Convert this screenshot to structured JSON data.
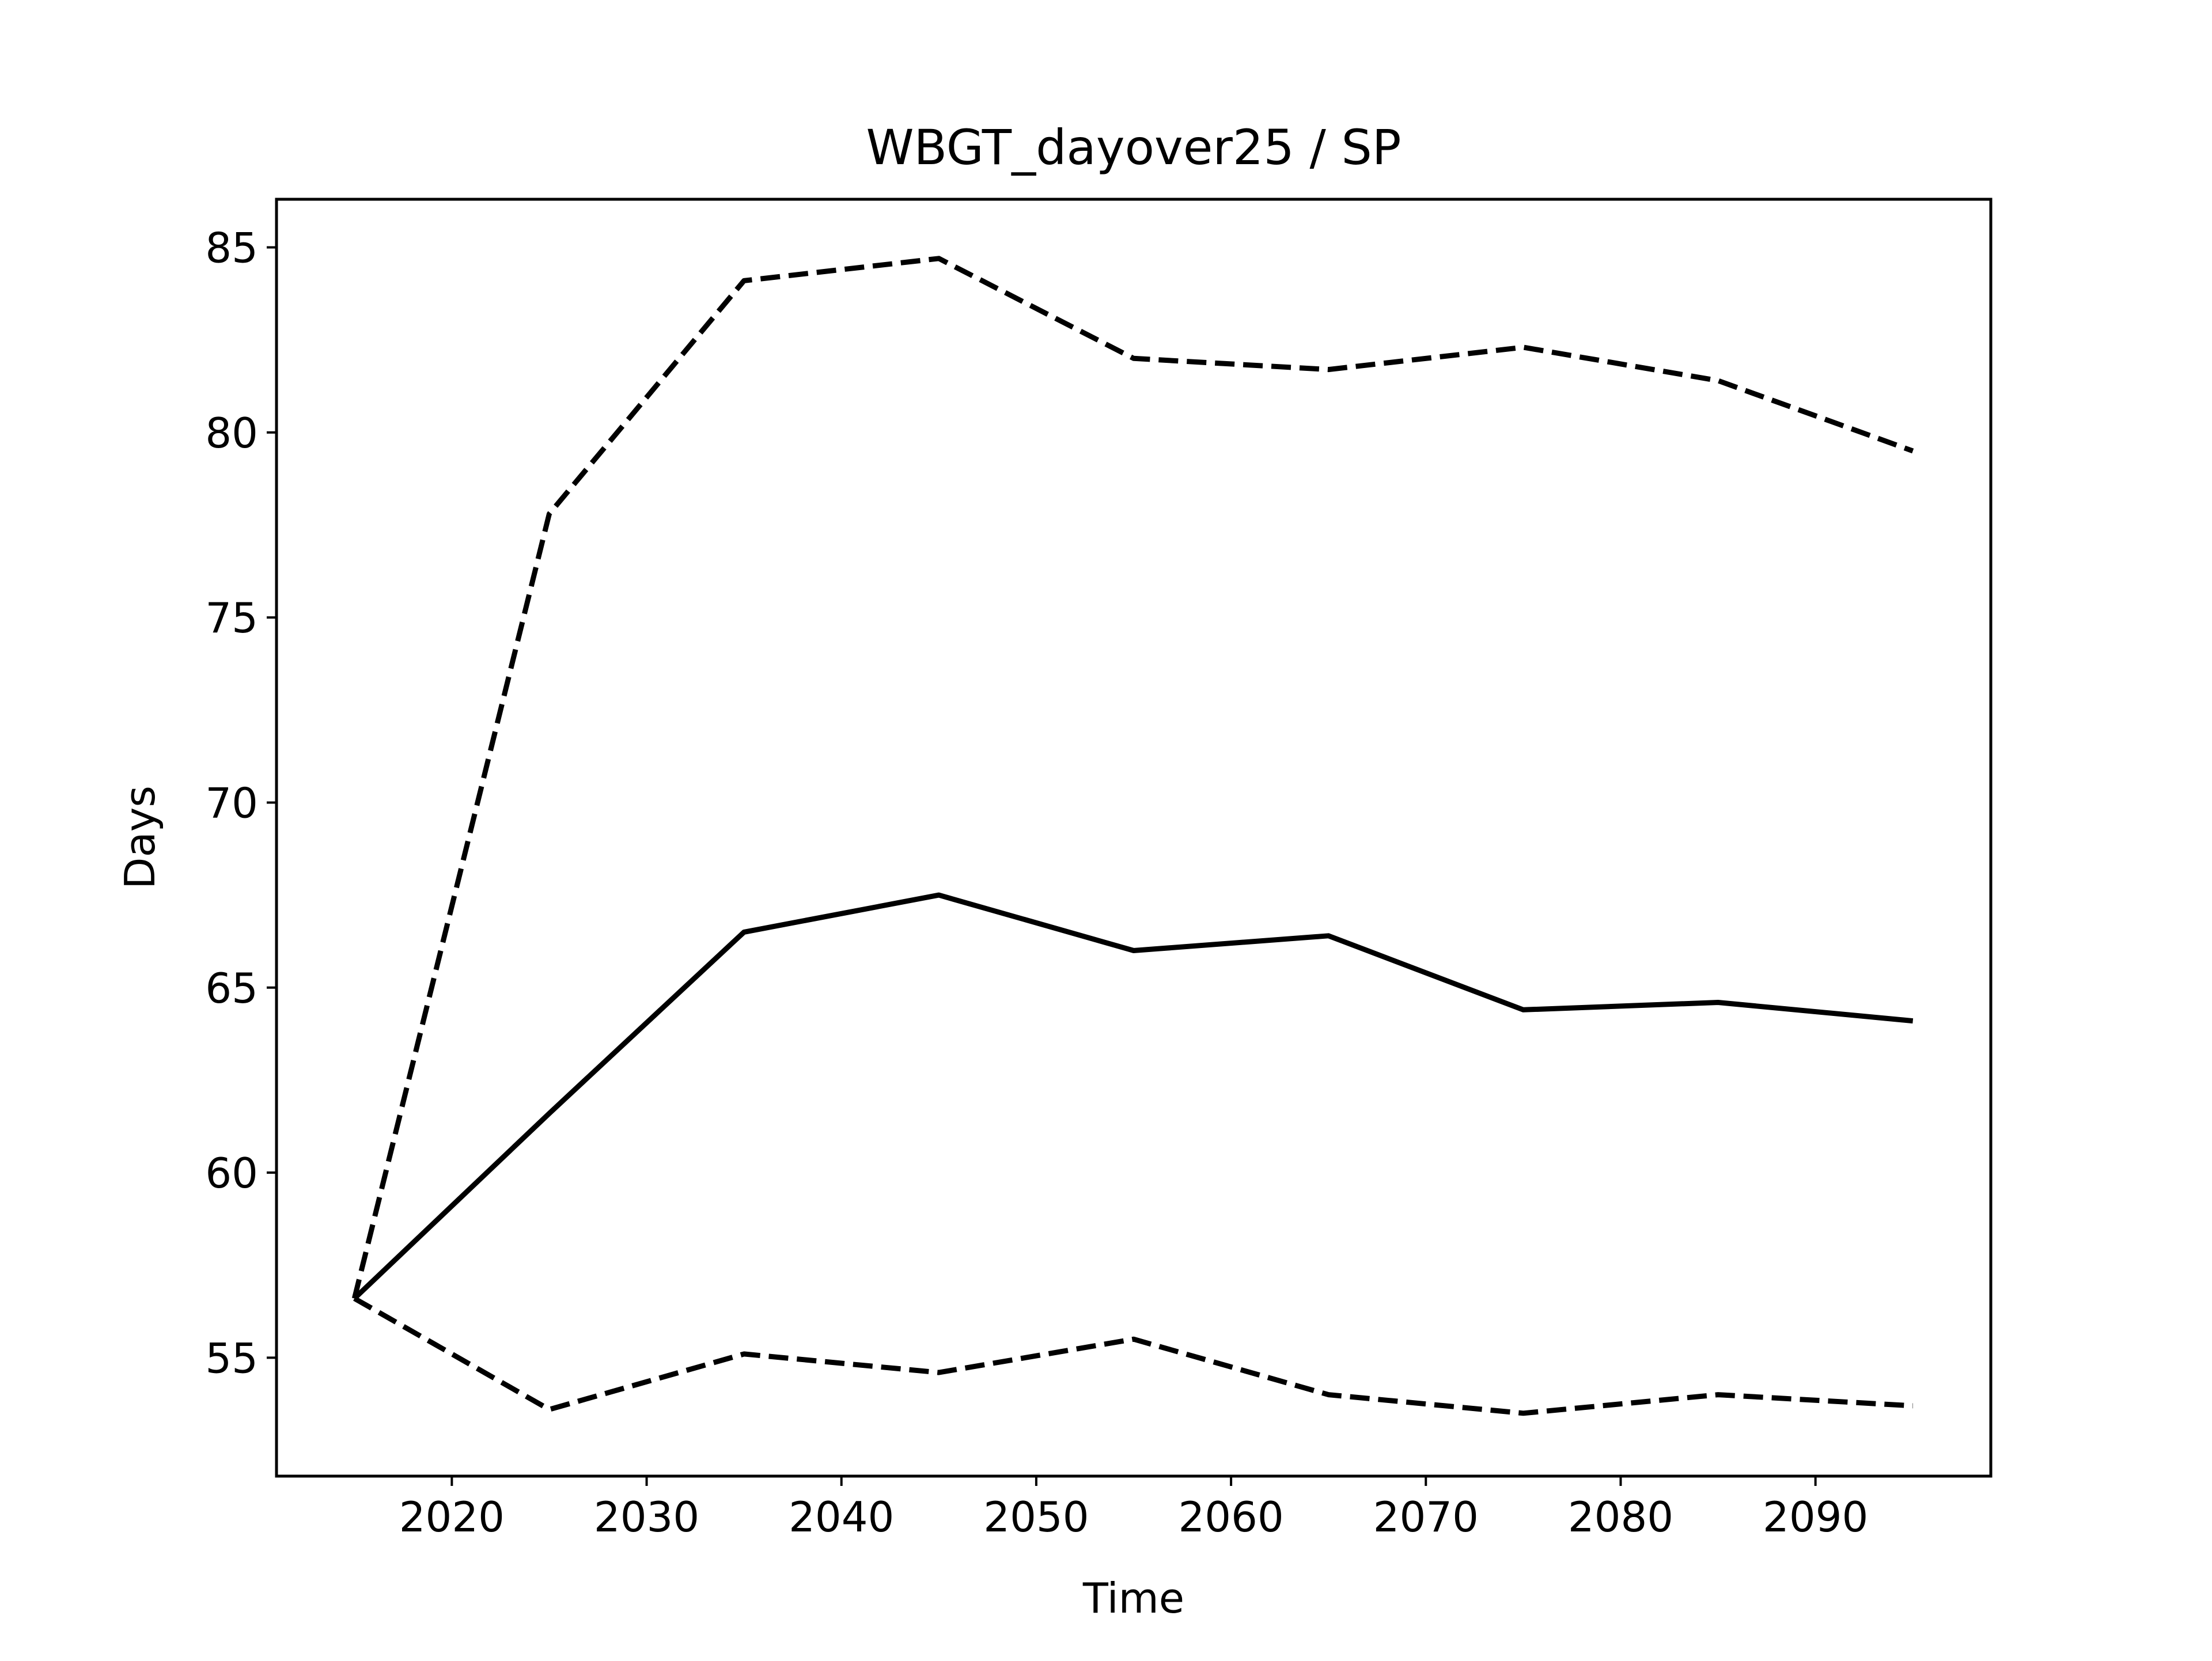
{
  "chart_data": {
    "type": "line",
    "title": "WBGT_dayover25 / SP",
    "xlabel": "Time",
    "ylabel": "Days",
    "x": [
      2015,
      2025,
      2035,
      2045,
      2055,
      2065,
      2075,
      2085,
      2095
    ],
    "xlim": [
      2011,
      2099
    ],
    "ylim": [
      51.8,
      86.3
    ],
    "xticks": [
      2020,
      2030,
      2040,
      2050,
      2060,
      2070,
      2080,
      2090
    ],
    "yticks": [
      55,
      60,
      65,
      70,
      75,
      80,
      85
    ],
    "grid": false,
    "legend": "none",
    "series": [
      {
        "line_style": "solid",
        "color": "#000000",
        "values": [
          56.6,
          61.6,
          66.5,
          67.5,
          66.0,
          66.4,
          64.4,
          64.6,
          64.1
        ]
      },
      {
        "line_style": "dashed",
        "color": "#000000",
        "values": [
          56.6,
          77.8,
          84.1,
          84.7,
          82.0,
          81.7,
          82.3,
          81.4,
          79.5
        ]
      },
      {
        "line_style": "dashed",
        "color": "#000000",
        "values": [
          56.6,
          53.6,
          55.1,
          54.6,
          55.5,
          54.0,
          53.5,
          54.0,
          53.7
        ]
      }
    ]
  }
}
